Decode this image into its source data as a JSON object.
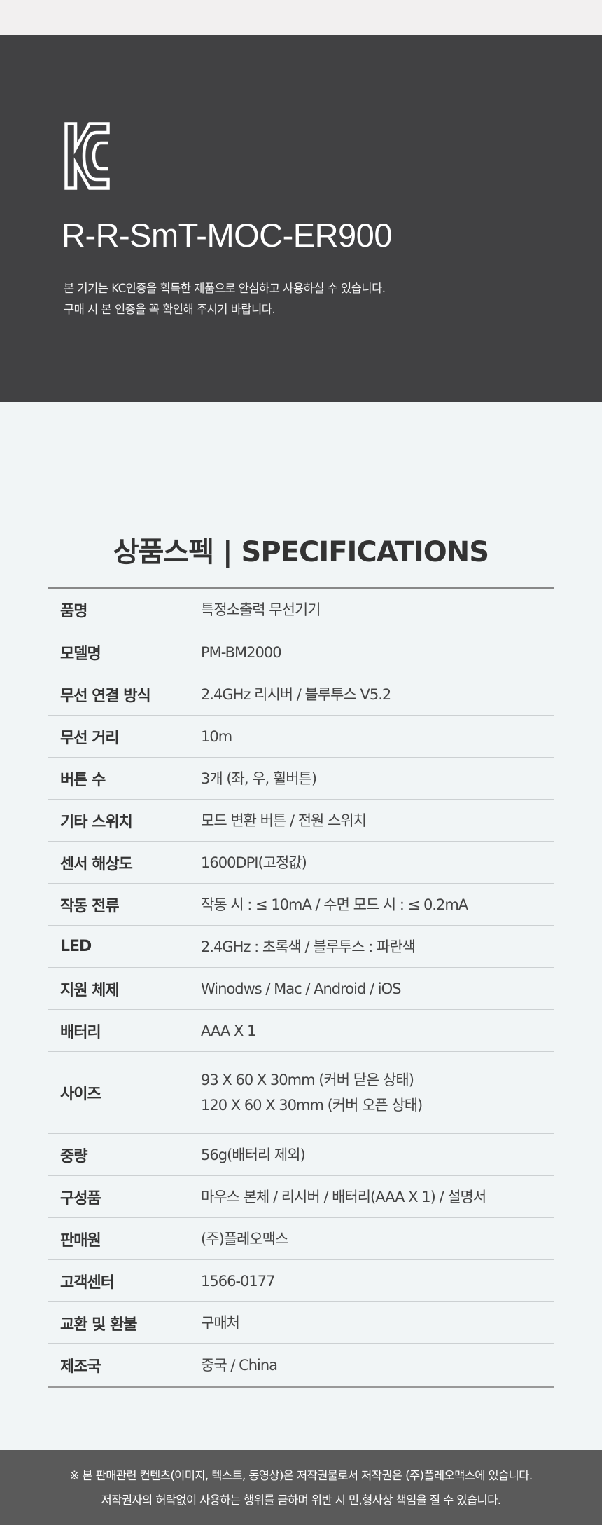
{
  "kc": {
    "logo_text": "KC",
    "model_code": "R-R-SmT-MOC-ER900",
    "notice_lines": [
      "본 기기는 KC인증을 획득한 제품으로 안심하고 사용하실 수 있습니다.",
      "구매 시 본 인증을 꼭 확인해 주시기 바랍니다."
    ]
  },
  "specs": {
    "title": "상품스펙 | SPECIFICATIONS",
    "rows": [
      {
        "label": "품명",
        "values": [
          "특정소출력 무선기기"
        ]
      },
      {
        "label": "모델명",
        "values": [
          "PM-BM2000"
        ]
      },
      {
        "label": "무선 연결 방식",
        "values": [
          "2.4GHz 리시버 / 블루투스 V5.2"
        ]
      },
      {
        "label": "무선 거리",
        "values": [
          "10m"
        ]
      },
      {
        "label": "버튼 수",
        "values": [
          "3개 (좌, 우, 휠버튼)"
        ]
      },
      {
        "label": "기타 스위치",
        "values": [
          "모드 변환 버튼 / 전원 스위치"
        ]
      },
      {
        "label": "센서 해상도",
        "values": [
          "1600DPI(고정값)"
        ]
      },
      {
        "label": "작동 전류",
        "values": [
          "작동 시 : ≤ 10mA / 수면 모드 시 : ≤ 0.2mA"
        ]
      },
      {
        "label": "LED",
        "values": [
          "2.4GHz : 초록색 / 블루투스 : 파란색"
        ]
      },
      {
        "label": "지원 체제",
        "values": [
          "Winodws / Mac / Android / iOS"
        ]
      },
      {
        "label": "배터리",
        "values": [
          "AAA X 1"
        ]
      },
      {
        "label": "사이즈",
        "values": [
          "93 X 60 X 30mm (커버 닫은 상태)",
          "120 X 60 X 30mm (커버 오픈 상태)"
        ]
      },
      {
        "label": "중량",
        "values": [
          "56g(배터리 제외)"
        ]
      },
      {
        "label": "구성품",
        "values": [
          "마우스 본체 / 리시버 / 배터리(AAA X 1) / 설명서"
        ]
      },
      {
        "label": "판매원",
        "values": [
          "(주)플레오맥스"
        ]
      },
      {
        "label": "고객센터",
        "values": [
          "1566-0177"
        ]
      },
      {
        "label": "교환 및 환불",
        "values": [
          "구매처"
        ]
      },
      {
        "label": "제조국",
        "values": [
          "중국 / China"
        ]
      }
    ]
  },
  "footer": {
    "lines": [
      "※ 본 판매관련 컨텐츠(이미지, 텍스트, 동영상)은 저작권물로서 저작권은 (주)플레오맥스에 있습니다.",
      "저작권자의 허락없이 사용하는 행위를 금하며 위반 시 민,형사상 책임을 질 수 있습니다."
    ]
  }
}
